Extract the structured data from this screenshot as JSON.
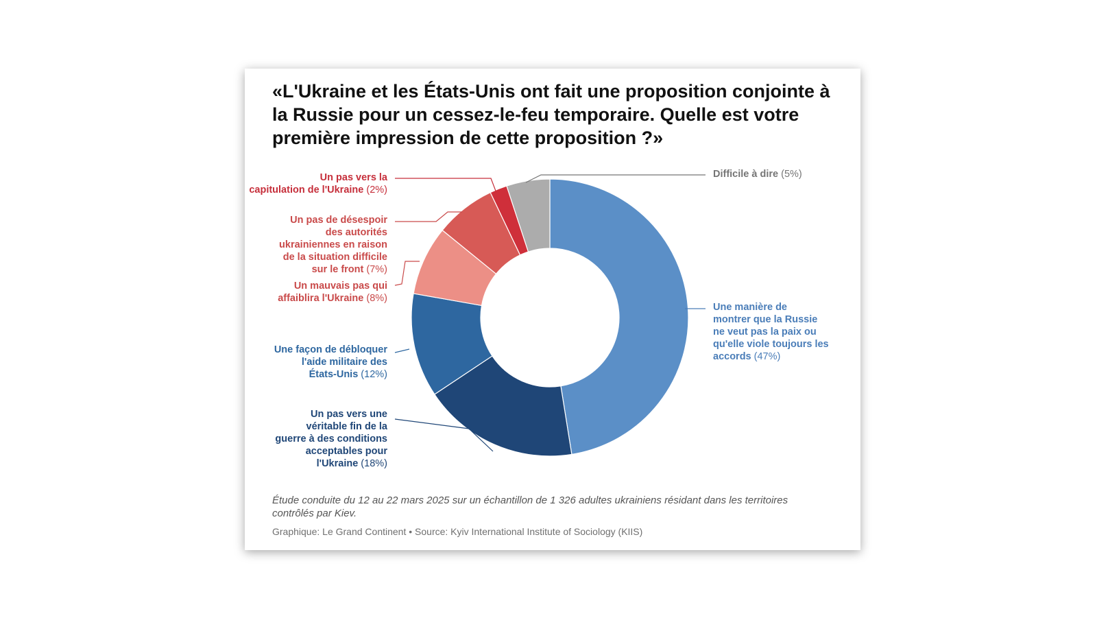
{
  "chart_data": {
    "type": "pie",
    "variant": "donut",
    "title": "«L'Ukraine et les États-Unis ont fait une proposition conjointe à la Russie pour un cessez-le-feu temporaire. Quelle est votre première impression de cette proposition ?»",
    "slices": [
      {
        "label_lines": [
          "Une manière de",
          "montrer que la Russie",
          "ne veut pas la paix ou",
          "qu'elle viole toujours les",
          "accords"
        ],
        "value": 47,
        "value_text": "(47%)",
        "color": "#5b8fc7",
        "text_color": "#4a7db8"
      },
      {
        "label_lines": [
          "Un pas vers une",
          "véritable fin de la",
          "guerre à des conditions",
          "acceptables pour",
          "l'Ukraine"
        ],
        "value": 18,
        "value_text": "(18%)",
        "color": "#1f4677",
        "text_color": "#1f4677"
      },
      {
        "label_lines": [
          "Une façon de débloquer",
          "l'aide militaire des",
          "États-Unis"
        ],
        "value": 12,
        "value_text": "(12%)",
        "color": "#2e67a0",
        "text_color": "#2e67a0"
      },
      {
        "label_lines": [
          "Un mauvais pas qui",
          "affaiblira l'Ukraine"
        ],
        "value": 8,
        "value_text": "(8%)",
        "color": "#ec8f86",
        "text_color": "#c94a4a"
      },
      {
        "label_lines": [
          "Un pas de désespoir",
          "des autorités",
          "ukrainiennes en raison",
          "de la situation difficile",
          "sur le front"
        ],
        "value": 7,
        "value_text": "(7%)",
        "color": "#d75a56",
        "text_color": "#c94a4a"
      },
      {
        "label_lines": [
          "Un pas vers la",
          "capitulation de l'Ukraine"
        ],
        "value": 2,
        "value_text": "(2%)",
        "color": "#cf2f3a",
        "text_color": "#c62f3b"
      },
      {
        "label_lines": [
          "Difficile à dire"
        ],
        "value": 5,
        "value_text": "(5%)",
        "color": "#acacac",
        "text_color": "#757575"
      }
    ]
  },
  "footer": {
    "note": "Étude conduite du 12 au 22 mars 2025 sur un échantillon de 1 326 adultes ukrainiens résidant dans les territoires contrôlés par Kiev.",
    "credit": "Graphique: Le Grand Continent • Source: Kyiv International Institute of Sociology (KIIS)"
  }
}
